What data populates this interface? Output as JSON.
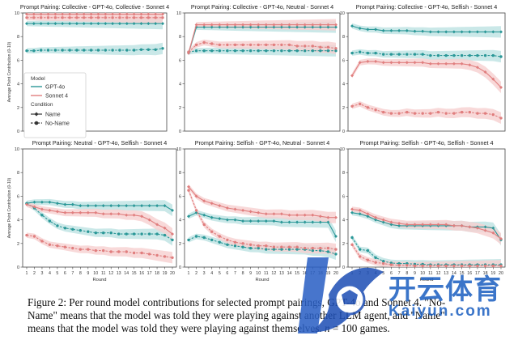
{
  "figure": {
    "colors": {
      "gpt": "#2a9797",
      "sonnet": "#e07e7e",
      "gpt_band": "#bde2e2",
      "sonnet_band": "#f6d0d0"
    },
    "legend": {
      "model_title": "Model",
      "gpt_label": "GPT-4o",
      "sonnet_label": "Sonnet 4",
      "condition_title": "Condition",
      "name_label": "Name",
      "noname_label": "No-Name"
    }
  },
  "chart_data": [
    {
      "type": "line",
      "title": "Prompt Pairing: Collective - GPT-4o, Collective - Sonnet 4",
      "ylabel": "Average Point Contribution (0-10)",
      "xlabel": "",
      "x": [
        1,
        2,
        3,
        4,
        5,
        6,
        7,
        8,
        9,
        10,
        11,
        12,
        13,
        14,
        15,
        16,
        17,
        18,
        19,
        20
      ],
      "ylim": [
        0,
        10
      ],
      "yticks": [
        0,
        2,
        4,
        6,
        8,
        10
      ],
      "series": [
        {
          "model": "GPT-4o",
          "condition": "Name",
          "values": [
            9.1,
            9.1,
            9.1,
            9.1,
            9.1,
            9.1,
            9.1,
            9.1,
            9.1,
            9.1,
            9.1,
            9.1,
            9.1,
            9.1,
            9.1,
            9.1,
            9.1,
            9.1,
            9.1,
            9.1
          ]
        },
        {
          "model": "GPT-4o",
          "condition": "No-Name",
          "values": [
            6.8,
            6.8,
            6.85,
            6.85,
            6.85,
            6.85,
            6.85,
            6.85,
            6.85,
            6.85,
            6.85,
            6.85,
            6.85,
            6.85,
            6.85,
            6.85,
            6.9,
            6.9,
            6.9,
            7.0
          ]
        },
        {
          "model": "Sonnet 4",
          "condition": "Name",
          "values": [
            9.9,
            9.9,
            9.9,
            9.9,
            9.9,
            9.9,
            9.9,
            9.9,
            9.9,
            9.9,
            9.9,
            9.9,
            9.9,
            9.9,
            9.9,
            9.9,
            9.9,
            9.9,
            9.9,
            9.9
          ]
        },
        {
          "model": "Sonnet 4",
          "condition": "No-Name",
          "values": [
            9.6,
            9.6,
            9.6,
            9.6,
            9.6,
            9.6,
            9.6,
            9.6,
            9.6,
            9.6,
            9.6,
            9.6,
            9.6,
            9.6,
            9.6,
            9.6,
            9.6,
            9.6,
            9.6,
            9.6
          ]
        }
      ]
    },
    {
      "type": "line",
      "title": "Prompt Pairing: Collective - GPT-4o, Neutral - Sonnet 4",
      "ylabel": "",
      "xlabel": "",
      "x": [
        1,
        2,
        3,
        4,
        5,
        6,
        7,
        8,
        9,
        10,
        11,
        12,
        13,
        14,
        15,
        16,
        17,
        18,
        19,
        20
      ],
      "ylim": [
        0,
        10
      ],
      "yticks": [
        0,
        2,
        4,
        6,
        8,
        10
      ],
      "series": [
        {
          "model": "GPT-4o",
          "condition": "Name",
          "values": [
            6.6,
            8.8,
            8.8,
            8.8,
            8.8,
            8.8,
            8.8,
            8.8,
            8.8,
            8.8,
            8.8,
            8.8,
            8.8,
            8.8,
            8.8,
            8.8,
            8.8,
            8.8,
            8.8,
            8.8
          ]
        },
        {
          "model": "GPT-4o",
          "condition": "No-Name",
          "values": [
            6.7,
            6.8,
            6.8,
            6.8,
            6.8,
            6.8,
            6.8,
            6.8,
            6.8,
            6.8,
            6.8,
            6.8,
            6.8,
            6.8,
            6.8,
            6.8,
            6.8,
            6.8,
            6.8,
            6.8
          ]
        },
        {
          "model": "Sonnet 4",
          "condition": "Name",
          "values": [
            6.6,
            9.0,
            9.0,
            9.0,
            9.0,
            9.0,
            9.0,
            9.0,
            9.0,
            9.0,
            9.0,
            9.0,
            9.0,
            9.0,
            9.0,
            9.0,
            9.0,
            9.0,
            9.0,
            9.0
          ]
        },
        {
          "model": "Sonnet 4",
          "condition": "No-Name",
          "values": [
            6.7,
            7.3,
            7.5,
            7.4,
            7.3,
            7.3,
            7.3,
            7.3,
            7.3,
            7.3,
            7.3,
            7.3,
            7.3,
            7.3,
            7.2,
            7.2,
            7.2,
            7.1,
            7.1,
            7.0
          ]
        }
      ]
    },
    {
      "type": "line",
      "title": "Prompt Pairing: Collective - GPT-4o, Selfish - Sonnet 4",
      "ylabel": "",
      "xlabel": "",
      "x": [
        1,
        2,
        3,
        4,
        5,
        6,
        7,
        8,
        9,
        10,
        11,
        12,
        13,
        14,
        15,
        16,
        17,
        18,
        19,
        20
      ],
      "ylim": [
        0,
        10
      ],
      "yticks": [
        0,
        2,
        4,
        6,
        8,
        10
      ],
      "series": [
        {
          "model": "GPT-4o",
          "condition": "Name",
          "values": [
            8.9,
            8.7,
            8.6,
            8.6,
            8.5,
            8.5,
            8.5,
            8.5,
            8.45,
            8.45,
            8.4,
            8.4,
            8.4,
            8.4,
            8.4,
            8.4,
            8.4,
            8.4,
            8.4,
            8.4
          ]
        },
        {
          "model": "GPT-4o",
          "condition": "No-Name",
          "values": [
            6.6,
            6.7,
            6.6,
            6.6,
            6.5,
            6.5,
            6.5,
            6.5,
            6.5,
            6.5,
            6.4,
            6.4,
            6.4,
            6.4,
            6.4,
            6.4,
            6.4,
            6.4,
            6.4,
            6.3
          ]
        },
        {
          "model": "Sonnet 4",
          "condition": "Name",
          "values": [
            4.7,
            5.8,
            5.9,
            5.9,
            5.8,
            5.8,
            5.8,
            5.8,
            5.8,
            5.8,
            5.7,
            5.7,
            5.7,
            5.7,
            5.7,
            5.6,
            5.4,
            5.0,
            4.4,
            3.7
          ]
        },
        {
          "model": "Sonnet 4",
          "condition": "No-Name",
          "values": [
            2.1,
            2.3,
            2.0,
            1.8,
            1.6,
            1.5,
            1.5,
            1.6,
            1.5,
            1.5,
            1.5,
            1.6,
            1.5,
            1.5,
            1.6,
            1.6,
            1.5,
            1.5,
            1.4,
            1.1
          ]
        }
      ]
    },
    {
      "type": "line",
      "title": "Prompt Pairing: Neutral - GPT-4o, Selfish - Sonnet 4",
      "ylabel": "Average Point Contribution (0-10)",
      "xlabel": "Round",
      "x": [
        1,
        2,
        3,
        4,
        5,
        6,
        7,
        8,
        9,
        10,
        11,
        12,
        13,
        14,
        15,
        16,
        17,
        18,
        19,
        20
      ],
      "xtick_labels": [
        "1",
        "2",
        "3",
        "4",
        "5",
        "6",
        "7",
        "8",
        "9",
        "10",
        "11",
        "12",
        "13",
        "14",
        "15",
        "16",
        "17",
        "18",
        "19",
        "20"
      ],
      "ylim": [
        0,
        10
      ],
      "yticks": [
        0,
        2,
        4,
        6,
        8,
        10
      ],
      "series": [
        {
          "model": "GPT-4o",
          "condition": "Name",
          "values": [
            5.4,
            5.5,
            5.5,
            5.5,
            5.4,
            5.3,
            5.3,
            5.2,
            5.2,
            5.2,
            5.2,
            5.2,
            5.2,
            5.2,
            5.2,
            5.2,
            5.2,
            5.2,
            5.2,
            4.8
          ]
        },
        {
          "model": "GPT-4o",
          "condition": "No-Name",
          "values": [
            5.4,
            5.0,
            4.4,
            3.9,
            3.5,
            3.3,
            3.2,
            3.1,
            3.0,
            2.9,
            2.9,
            2.9,
            2.8,
            2.8,
            2.8,
            2.8,
            2.8,
            2.8,
            2.7,
            2.3
          ]
        },
        {
          "model": "Sonnet 4",
          "condition": "Name",
          "values": [
            5.3,
            5.1,
            4.9,
            4.8,
            4.7,
            4.6,
            4.6,
            4.6,
            4.6,
            4.6,
            4.5,
            4.5,
            4.5,
            4.4,
            4.4,
            4.3,
            4.0,
            3.6,
            3.3,
            2.8
          ]
        },
        {
          "model": "Sonnet 4",
          "condition": "No-Name",
          "values": [
            2.7,
            2.6,
            2.2,
            1.9,
            1.8,
            1.7,
            1.6,
            1.5,
            1.5,
            1.4,
            1.4,
            1.3,
            1.3,
            1.3,
            1.2,
            1.2,
            1.1,
            1.0,
            0.9,
            0.8
          ]
        }
      ]
    },
    {
      "type": "line",
      "title": "Prompt Pairing: Selfish - GPT-4o, Neutral - Sonnet 4",
      "ylabel": "",
      "xlabel": "Round",
      "x": [
        1,
        2,
        3,
        4,
        5,
        6,
        7,
        8,
        9,
        10,
        11,
        12,
        13,
        14,
        15,
        16,
        17,
        18,
        19,
        20
      ],
      "xtick_labels": [
        "1",
        "2",
        "3",
        "4",
        "5",
        "6",
        "7",
        "8",
        "9",
        "10",
        "11",
        "12",
        "13",
        "14",
        "15",
        "16",
        "17",
        "18",
        "19",
        "20"
      ],
      "ylim": [
        0,
        10
      ],
      "yticks": [
        0,
        2,
        4,
        6,
        8,
        10
      ],
      "series": [
        {
          "model": "GPT-4o",
          "condition": "Name",
          "values": [
            4.3,
            4.6,
            4.4,
            4.2,
            4.1,
            4.0,
            4.0,
            3.9,
            3.9,
            3.9,
            3.9,
            3.9,
            3.8,
            3.8,
            3.8,
            3.8,
            3.8,
            3.8,
            3.8,
            2.6
          ]
        },
        {
          "model": "GPT-4o",
          "condition": "No-Name",
          "values": [
            2.3,
            2.6,
            2.5,
            2.3,
            2.1,
            1.9,
            1.8,
            1.7,
            1.6,
            1.6,
            1.5,
            1.5,
            1.5,
            1.5,
            1.5,
            1.5,
            1.4,
            1.4,
            1.3,
            1.1
          ]
        },
        {
          "model": "Sonnet 4",
          "condition": "Name",
          "values": [
            6.8,
            6.0,
            5.6,
            5.4,
            5.2,
            5.0,
            4.9,
            4.8,
            4.7,
            4.6,
            4.5,
            4.5,
            4.5,
            4.4,
            4.4,
            4.4,
            4.4,
            4.3,
            4.2,
            4.2
          ]
        },
        {
          "model": "Sonnet 4",
          "condition": "No-Name",
          "values": [
            6.5,
            4.8,
            3.6,
            3.0,
            2.6,
            2.3,
            2.1,
            2.0,
            1.9,
            1.8,
            1.8,
            1.7,
            1.7,
            1.7,
            1.7,
            1.6,
            1.6,
            1.6,
            1.6,
            1.5
          ]
        }
      ]
    },
    {
      "type": "line",
      "title": "Prompt Pairing: Selfish - GPT-4o, Selfish - Sonnet 4",
      "ylabel": "",
      "xlabel": "Round",
      "x": [
        1,
        2,
        3,
        4,
        5,
        6,
        7,
        8,
        9,
        10,
        11,
        12,
        13,
        14,
        15,
        16,
        17,
        18,
        19,
        20
      ],
      "xtick_labels": [
        "1",
        "2",
        "3",
        "4",
        "5",
        "6",
        "7",
        "8",
        "9",
        "10",
        "11",
        "12",
        "13",
        "14",
        "15",
        "16",
        "17",
        "18",
        "19",
        "20"
      ],
      "ylim": [
        0,
        10
      ],
      "yticks": [
        0,
        2,
        4,
        6,
        8,
        10
      ],
      "series": [
        {
          "model": "GPT-4o",
          "condition": "Name",
          "values": [
            4.6,
            4.5,
            4.3,
            4.0,
            3.8,
            3.6,
            3.5,
            3.5,
            3.5,
            3.5,
            3.5,
            3.5,
            3.5,
            3.5,
            3.5,
            3.4,
            3.4,
            3.4,
            3.3,
            2.3
          ]
        },
        {
          "model": "GPT-4o",
          "condition": "No-Name",
          "values": [
            2.5,
            1.5,
            1.4,
            0.8,
            0.5,
            0.35,
            0.3,
            0.3,
            0.25,
            0.25,
            0.2,
            0.2,
            0.2,
            0.2,
            0.2,
            0.2,
            0.2,
            0.2,
            0.2,
            0.2
          ]
        },
        {
          "model": "Sonnet 4",
          "condition": "Name",
          "values": [
            4.9,
            4.8,
            4.5,
            4.2,
            4.0,
            3.8,
            3.7,
            3.6,
            3.6,
            3.6,
            3.6,
            3.6,
            3.6,
            3.5,
            3.5,
            3.4,
            3.3,
            3.1,
            2.9,
            2.4
          ]
        },
        {
          "model": "Sonnet 4",
          "condition": "No-Name",
          "values": [
            1.9,
            0.9,
            0.6,
            0.4,
            0.3,
            0.2,
            0.15,
            0.15,
            0.1,
            0.1,
            0.1,
            0.1,
            0.1,
            0.1,
            0.1,
            0.1,
            0.1,
            0.1,
            0.1,
            0.1
          ]
        }
      ]
    }
  ],
  "caption": {
    "line1": "Figure 2: Per round model contributions for selected prompt pairings, GPT-4o and Sonnet 4. \"No-",
    "line2": "Name\" means that the model was told they were playing against another LLM agent, and \"Name\"",
    "line3_a": "means that the model was told they were playing against themselves. ",
    "line3_n": "n",
    "line3_b": " = 100 games."
  },
  "watermark": {
    "logo_text": "开云体育",
    "logo_url_text": "Kaiyun.com"
  }
}
